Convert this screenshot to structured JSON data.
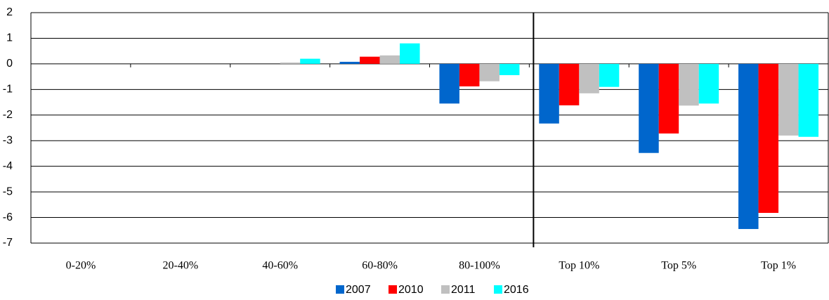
{
  "chart_data": {
    "type": "bar",
    "categories": [
      "0-20%",
      "20-40%",
      "40-60%",
      "60-80%",
      "80-100%",
      "Top 10%",
      "Top 5%",
      "Top 1%"
    ],
    "series": [
      {
        "name": "2007",
        "color": "#0066cc",
        "values": [
          0,
          0,
          0,
          0.08,
          -1.55,
          -2.33,
          -3.48,
          -6.45
        ]
      },
      {
        "name": "2010",
        "color": "#ff0000",
        "values": [
          0,
          0,
          0,
          0.28,
          -0.88,
          -1.62,
          -2.72,
          -5.82
        ]
      },
      {
        "name": "2011",
        "color": "#c0c0c0",
        "values": [
          0,
          0,
          0.05,
          0.33,
          -0.68,
          -1.15,
          -1.63,
          -2.8
        ]
      },
      {
        "name": "2016",
        "color": "#00ffff",
        "values": [
          0,
          0,
          0.2,
          0.8,
          -0.44,
          -0.9,
          -1.55,
          -2.85
        ]
      }
    ],
    "ylim": [
      -7,
      2
    ],
    "yticks": [
      -7,
      -6,
      -5,
      -4,
      -3,
      -2,
      -1,
      0,
      1,
      2
    ],
    "grid": true,
    "legend": "bottom"
  }
}
